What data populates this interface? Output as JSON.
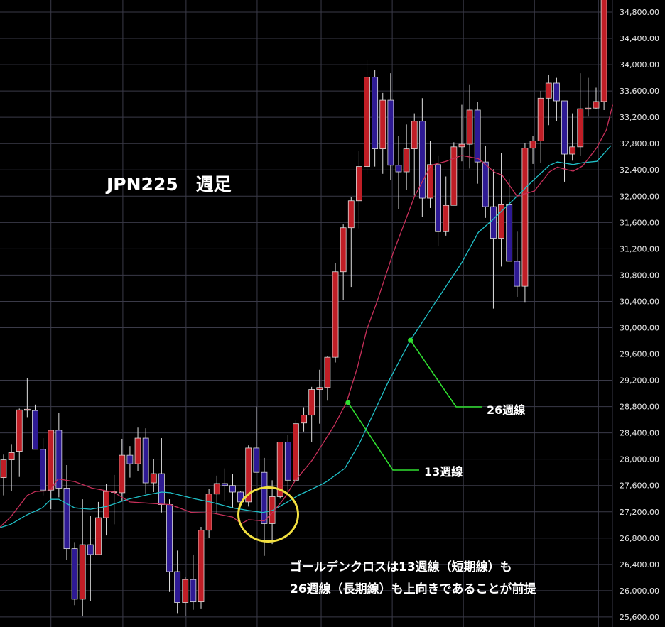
{
  "title": "JPN225　週足",
  "annotations": {
    "ma13_label": "13週線",
    "ma26_label": "26週線",
    "note_line1": "ゴールデンクロスは13週線（短期線）も",
    "note_line2": "26週線（長期線）も上向きであることが前提"
  },
  "colors": {
    "up": "#c01e26",
    "down": "#2e1a94",
    "ma13": "#c8305a",
    "ma26": "#20c0c8",
    "pointer": "#30e030",
    "highlight": "#f2e040",
    "grid": "#3a3a48"
  },
  "chart_data": {
    "type": "candlestick",
    "title": "JPN225　週足",
    "x_unit": "week index",
    "ylim": [
      25600,
      34800
    ],
    "ytick_step": 400,
    "y_axis_position": "right",
    "grid": true,
    "candles_ohlc": [
      [
        27720,
        28070,
        27450,
        27990
      ],
      [
        27990,
        28230,
        27520,
        28100
      ],
      [
        28120,
        28770,
        27730,
        28750
      ],
      [
        28750,
        29230,
        28640,
        28760
      ],
      [
        28740,
        28830,
        28150,
        28150
      ],
      [
        28150,
        28320,
        27450,
        27530
      ],
      [
        27530,
        28440,
        27240,
        28440
      ],
      [
        28440,
        28700,
        27420,
        27560
      ],
      [
        27560,
        27910,
        26470,
        26640
      ],
      [
        26640,
        26740,
        25780,
        25870
      ],
      [
        25870,
        27390,
        25610,
        26700
      ],
      [
        26700,
        27140,
        25840,
        26550
      ],
      [
        26550,
        27350,
        26540,
        27110
      ],
      [
        27110,
        27620,
        26840,
        27510
      ],
      [
        27500,
        27760,
        27010,
        27510
      ],
      [
        27490,
        28310,
        27370,
        28060
      ],
      [
        28060,
        28200,
        27720,
        27930
      ],
      [
        27930,
        28480,
        27820,
        28320
      ],
      [
        28320,
        28470,
        27480,
        27640
      ],
      [
        27640,
        28000,
        27500,
        27780
      ],
      [
        27780,
        28320,
        27190,
        27310
      ],
      [
        27310,
        27390,
        25980,
        26290
      ],
      [
        26290,
        26610,
        25660,
        25820
      ],
      [
        25820,
        26210,
        25610,
        26170
      ],
      [
        26170,
        26550,
        25710,
        25830
      ],
      [
        25830,
        26970,
        25730,
        26920
      ],
      [
        26920,
        27550,
        26800,
        27470
      ],
      [
        27470,
        27750,
        27170,
        27630
      ],
      [
        27630,
        27860,
        27370,
        27600
      ],
      [
        27600,
        27780,
        27260,
        27500
      ],
      [
        27500,
        27510,
        27280,
        27350
      ],
      [
        27350,
        28210,
        27280,
        28170
      ],
      [
        28170,
        28800,
        27800,
        27800
      ],
      [
        27800,
        28020,
        26530,
        27020
      ],
      [
        27020,
        27680,
        26710,
        27430
      ],
      [
        27430,
        28260,
        27400,
        28260
      ],
      [
        28260,
        28370,
        27470,
        27680
      ],
      [
        27680,
        28600,
        27680,
        28540
      ],
      [
        28550,
        28790,
        28420,
        28670
      ],
      [
        28670,
        29100,
        28260,
        29060
      ],
      [
        29060,
        29360,
        28540,
        29090
      ],
      [
        29090,
        29570,
        28890,
        29550
      ],
      [
        29550,
        30980,
        29470,
        30850
      ],
      [
        30850,
        31570,
        30420,
        31520
      ],
      [
        31520,
        31990,
        30620,
        31930
      ],
      [
        31930,
        32690,
        31510,
        32450
      ],
      [
        32450,
        34070,
        32340,
        33810
      ],
      [
        33810,
        33920,
        32450,
        32720
      ],
      [
        32720,
        33570,
        32340,
        33460
      ],
      [
        33460,
        33870,
        32250,
        32470
      ],
      [
        32470,
        32920,
        31800,
        32370
      ],
      [
        32370,
        33090,
        32100,
        32720
      ],
      [
        32720,
        33260,
        32010,
        33140
      ],
      [
        33140,
        33490,
        31690,
        31970
      ],
      [
        31970,
        32840,
        31820,
        32480
      ],
      [
        32480,
        32620,
        31240,
        31460
      ],
      [
        31460,
        32300,
        31400,
        31860
      ],
      [
        31860,
        32820,
        31860,
        32750
      ],
      [
        32750,
        33390,
        32530,
        32790
      ],
      [
        32790,
        33690,
        32420,
        33310
      ],
      [
        33310,
        33430,
        32190,
        32520
      ],
      [
        32520,
        32770,
        31670,
        31840
      ],
      [
        31840,
        32410,
        30290,
        31360
      ],
      [
        31360,
        32660,
        30930,
        31880
      ],
      [
        31880,
        32260,
        31010,
        31010
      ],
      [
        31010,
        31460,
        30470,
        30630
      ],
      [
        30630,
        32810,
        30380,
        32730
      ],
      [
        32730,
        32910,
        32490,
        32840
      ],
      [
        32840,
        33600,
        32500,
        33490
      ],
      [
        33490,
        33850,
        33080,
        33720
      ],
      [
        33720,
        33800,
        33140,
        33450
      ],
      [
        33450,
        33450,
        32220,
        32640
      ],
      [
        32640,
        33260,
        32540,
        32750
      ],
      [
        32750,
        33870,
        32610,
        33330
      ],
      [
        33330,
        33800,
        33210,
        33340
      ],
      [
        33340,
        33650,
        33320,
        33440
      ],
      [
        33440,
        35000,
        33310,
        35000
      ]
    ],
    "ma13": [
      [
        0.55,
        26970
      ],
      [
        1.9,
        27120
      ],
      [
        4.0,
        27450
      ],
      [
        5.05,
        27510
      ],
      [
        6.85,
        27520
      ],
      [
        7.9,
        27700
      ],
      [
        10.0,
        27660
      ],
      [
        12.2,
        27560
      ],
      [
        14.9,
        27500
      ],
      [
        17.0,
        27350
      ],
      [
        19.4,
        27330
      ],
      [
        22.1,
        27310
      ],
      [
        24.8,
        27190
      ],
      [
        27.5,
        27180
      ],
      [
        30.0,
        27120
      ],
      [
        31.1,
        27020
      ],
      [
        32.0,
        27080
      ],
      [
        34.0,
        27060
      ],
      [
        35.2,
        27210
      ],
      [
        36.5,
        27400
      ],
      [
        37.9,
        27670
      ],
      [
        40.1,
        27990
      ],
      [
        42.8,
        28500
      ],
      [
        44.4,
        28860
      ],
      [
        45.8,
        29400
      ],
      [
        47.0,
        29980
      ],
      [
        48.2,
        30370
      ],
      [
        50.3,
        31130
      ],
      [
        53.0,
        31990
      ],
      [
        55.1,
        32470
      ],
      [
        57.0,
        32530
      ],
      [
        59.0,
        32620
      ],
      [
        61.1,
        32570
      ],
      [
        63.2,
        32360
      ],
      [
        64.1,
        32320
      ],
      [
        66.0,
        32000
      ],
      [
        68.2,
        32080
      ],
      [
        70.1,
        32370
      ],
      [
        71.1,
        32440
      ],
      [
        73.1,
        32380
      ],
      [
        74.3,
        32460
      ],
      [
        76.1,
        32740
      ],
      [
        77.3,
        33010
      ],
      [
        78.1,
        33390
      ]
    ],
    "ma26": [
      [
        0.55,
        26960
      ],
      [
        1.9,
        27010
      ],
      [
        3.9,
        27150
      ],
      [
        5.9,
        27260
      ],
      [
        7.0,
        27390
      ],
      [
        8.0,
        27390
      ],
      [
        10.0,
        27260
      ],
      [
        12.0,
        27240
      ],
      [
        14.0,
        27280
      ],
      [
        16.7,
        27390
      ],
      [
        19.2,
        27460
      ],
      [
        21.0,
        27500
      ],
      [
        22.1,
        27490
      ],
      [
        25.1,
        27400
      ],
      [
        27.5,
        27340
      ],
      [
        30.0,
        27260
      ],
      [
        32.0,
        27220
      ],
      [
        33.8,
        27190
      ],
      [
        35.0,
        27220
      ],
      [
        36.8,
        27340
      ],
      [
        38.3,
        27450
      ],
      [
        41.0,
        27600
      ],
      [
        41.9,
        27660
      ],
      [
        44.2,
        27860
      ],
      [
        46.0,
        28230
      ],
      [
        49.6,
        29150
      ],
      [
        52.5,
        29810
      ],
      [
        54.8,
        30230
      ],
      [
        59.0,
        30990
      ],
      [
        61.1,
        31450
      ],
      [
        62.9,
        31640
      ],
      [
        66.0,
        32000
      ],
      [
        68.2,
        32260
      ],
      [
        70.1,
        32470
      ],
      [
        71.1,
        32520
      ],
      [
        73.1,
        32480
      ],
      [
        74.3,
        32510
      ],
      [
        76.1,
        32530
      ],
      [
        77.9,
        32770
      ]
    ],
    "ma13_marker": [
      44.6,
      28860
    ],
    "ma26_marker": [
      52.5,
      29810
    ],
    "highlight_circle_center": [
      34.5,
      27160
    ]
  }
}
